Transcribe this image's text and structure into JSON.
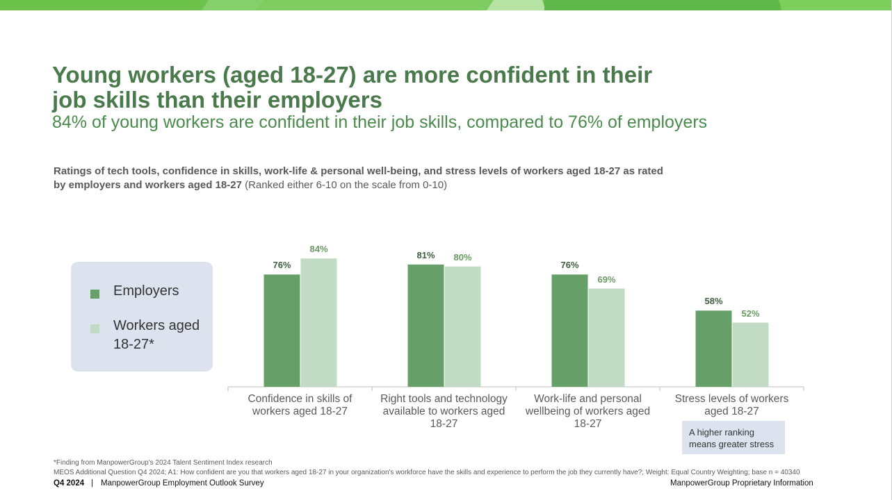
{
  "header": {
    "title": "Young workers (aged 18-27) are more confident in their job skills than their employers",
    "subtitle": "84% of young workers are confident in their job skills, compared to 76% of employers"
  },
  "chart_data": {
    "type": "bar",
    "title": "Ratings of tech tools, confidence in skills, work-life & personal well-being, and stress levels of workers aged 18-27 as rated by employers and workers aged 18-27",
    "title_note": "(Ranked either 6-10 on the scale from 0-10)",
    "categories": [
      "Confidence in skills of workers aged 18-27",
      "Right tools and technology available to workers aged 18-27",
      "Work-life and personal wellbeing of workers aged 18-27",
      "Stress levels of workers aged 18-27"
    ],
    "series": [
      {
        "name": "Employers",
        "color": "#679f68",
        "label_color": "#3f5e41",
        "values": [
          76,
          81,
          76,
          58
        ],
        "value_labels": [
          "76%",
          "81%",
          "76%",
          "58%"
        ]
      },
      {
        "name": "Workers aged 18-27*",
        "color": "#c2dbc4",
        "label_color": "#6a9a63",
        "values": [
          84,
          80,
          69,
          52
        ],
        "value_labels": [
          "84%",
          "80%",
          "69%",
          "52%"
        ]
      }
    ],
    "ylim": [
      20,
      100
    ],
    "annotation": "A higher ranking means greater stress"
  },
  "footnotes": [
    "*Finding from ManpowerGroup's 2024 Talent Sentiment Index research",
    "MEOS Additional Question Q4 2024; A1: How confident are you that workers aged 18-27 in your organization's workforce have the skills and experience to perform the job they currently have?; Weight: Equal Country Weighting; base n = 40340"
  ],
  "footer": {
    "period": "Q4 2024",
    "separator": "|",
    "survey": "ManpowerGroup Employment Outlook Survey",
    "notice": "ManpowerGroup Proprietary Information"
  }
}
